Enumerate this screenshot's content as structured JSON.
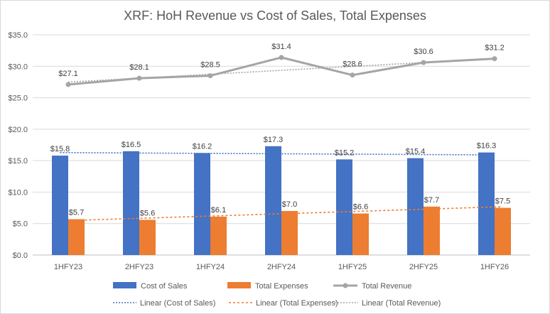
{
  "chart_data": {
    "type": "bar",
    "title": "XRF: HoH Revenue vs Cost of Sales, Total Expenses",
    "categories": [
      "1HFY23",
      "2HFY23",
      "1HFY24",
      "2HFY24",
      "1HFY25",
      "2HFY25",
      "1HFY26"
    ],
    "ylim": [
      0,
      35
    ],
    "y_ticks": [
      "$0.0",
      "$5.0",
      "$10.0",
      "$15.0",
      "$20.0",
      "$25.0",
      "$30.0",
      "$35.0"
    ],
    "grid": true,
    "legend_position": "bottom",
    "series": [
      {
        "name": "Cost of Sales",
        "kind": "bar",
        "color": "#4472c4",
        "values": [
          15.8,
          16.5,
          16.2,
          17.3,
          15.2,
          15.4,
          16.3
        ],
        "labels": [
          "$15.8",
          "$16.5",
          "$16.2",
          "$17.3",
          "$15.2",
          "$15.4",
          "$16.3"
        ]
      },
      {
        "name": "Total Expenses",
        "kind": "bar",
        "color": "#ed7d31",
        "values": [
          5.7,
          5.6,
          6.1,
          7.0,
          6.6,
          7.7,
          7.5
        ],
        "labels": [
          "$5.7",
          "$5.6",
          "$6.1",
          "$7.0",
          "$6.6",
          "$7.7",
          "$7.5"
        ]
      },
      {
        "name": "Total Revenue",
        "kind": "line",
        "color": "#a5a5a5",
        "values": [
          27.1,
          28.1,
          28.5,
          31.4,
          28.6,
          30.6,
          31.2
        ],
        "labels": [
          "$27.1",
          "$28.1",
          "$28.5",
          "$31.4",
          "$28.6",
          "$30.6",
          "$31.2"
        ]
      }
    ],
    "trendlines": [
      {
        "name": "Linear (Cost of Sales)",
        "of": "Cost of Sales",
        "color": "#4472c4"
      },
      {
        "name": "Linear (Total Expenses)",
        "of": "Total Expenses",
        "color": "#ed7d31"
      },
      {
        "name": "Linear (Total Revenue)",
        "of": "Total Revenue",
        "color": "#a5a5a5"
      }
    ]
  }
}
